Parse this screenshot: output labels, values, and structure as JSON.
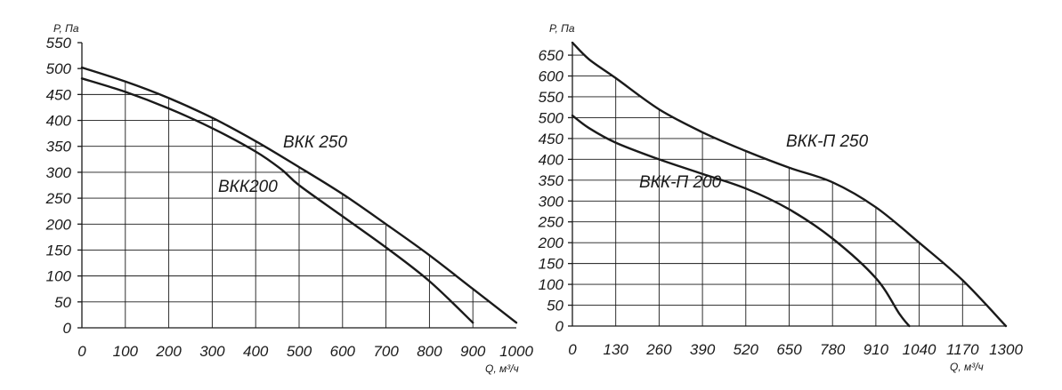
{
  "chart_data": [
    {
      "type": "line",
      "ylabel": "P, Па",
      "xlabel": "Q, м³/ч",
      "xlim": [
        0,
        1000
      ],
      "ylim": [
        0,
        550
      ],
      "xticks": [
        "0",
        "100",
        "200",
        "300",
        "400",
        "500",
        "600",
        "700",
        "800",
        "900",
        "1000"
      ],
      "yticks": [
        "0",
        "50",
        "100",
        "150",
        "200",
        "250",
        "300",
        "350",
        "400",
        "450",
        "500",
        "550"
      ],
      "grid": "on, vertical lines below curves",
      "series": [
        {
          "name": "ВКК 250",
          "x": [
            0,
            100,
            200,
            300,
            400,
            500,
            600,
            700,
            800,
            900,
            1000
          ],
          "y": [
            502,
            475,
            443,
            405,
            360,
            310,
            258,
            200,
            140,
            75,
            10
          ]
        },
        {
          "name": "ВКК200",
          "x": [
            0,
            100,
            200,
            300,
            400,
            460,
            500,
            600,
            700,
            800,
            900
          ],
          "y": [
            481,
            455,
            423,
            385,
            340,
            305,
            275,
            215,
            155,
            90,
            10
          ]
        }
      ]
    },
    {
      "type": "line",
      "ylabel": "P, Па",
      "xlabel": "Q, м³/ч",
      "xlim": [
        0,
        1300
      ],
      "ylim": [
        0,
        680
      ],
      "xticks": [
        "0",
        "130",
        "260",
        "390",
        "520",
        "650",
        "780",
        "910",
        "1040",
        "1170",
        "1300"
      ],
      "yticks": [
        "0",
        "50",
        "100",
        "150",
        "200",
        "250",
        "300",
        "350",
        "400",
        "450",
        "500",
        "550",
        "600",
        "650"
      ],
      "grid": "on, vertical lines below curves",
      "series": [
        {
          "name": "ВКК-П 250",
          "x": [
            0,
            50,
            130,
            260,
            390,
            520,
            650,
            780,
            910,
            1040,
            1170,
            1300
          ],
          "y": [
            680,
            640,
            595,
            520,
            465,
            420,
            380,
            345,
            285,
            200,
            110,
            0
          ]
        },
        {
          "name": "ВКК-П 200",
          "x": [
            0,
            50,
            130,
            260,
            390,
            520,
            650,
            780,
            910,
            980,
            1010
          ],
          "y": [
            505,
            475,
            440,
            400,
            365,
            330,
            280,
            210,
            115,
            30,
            0
          ]
        }
      ]
    }
  ],
  "labels": {
    "left_curve_upper": "ВКК 250",
    "left_curve_lower": "ВКК200",
    "right_curve_upper": "ВКК-П 250",
    "right_curve_lower": "ВКК-П 200",
    "left_ylabel": "P, Па",
    "left_xlabel": "Q, м³/ч",
    "right_ylabel": "P, Па",
    "right_xlabel": "Q, м³/ч"
  }
}
